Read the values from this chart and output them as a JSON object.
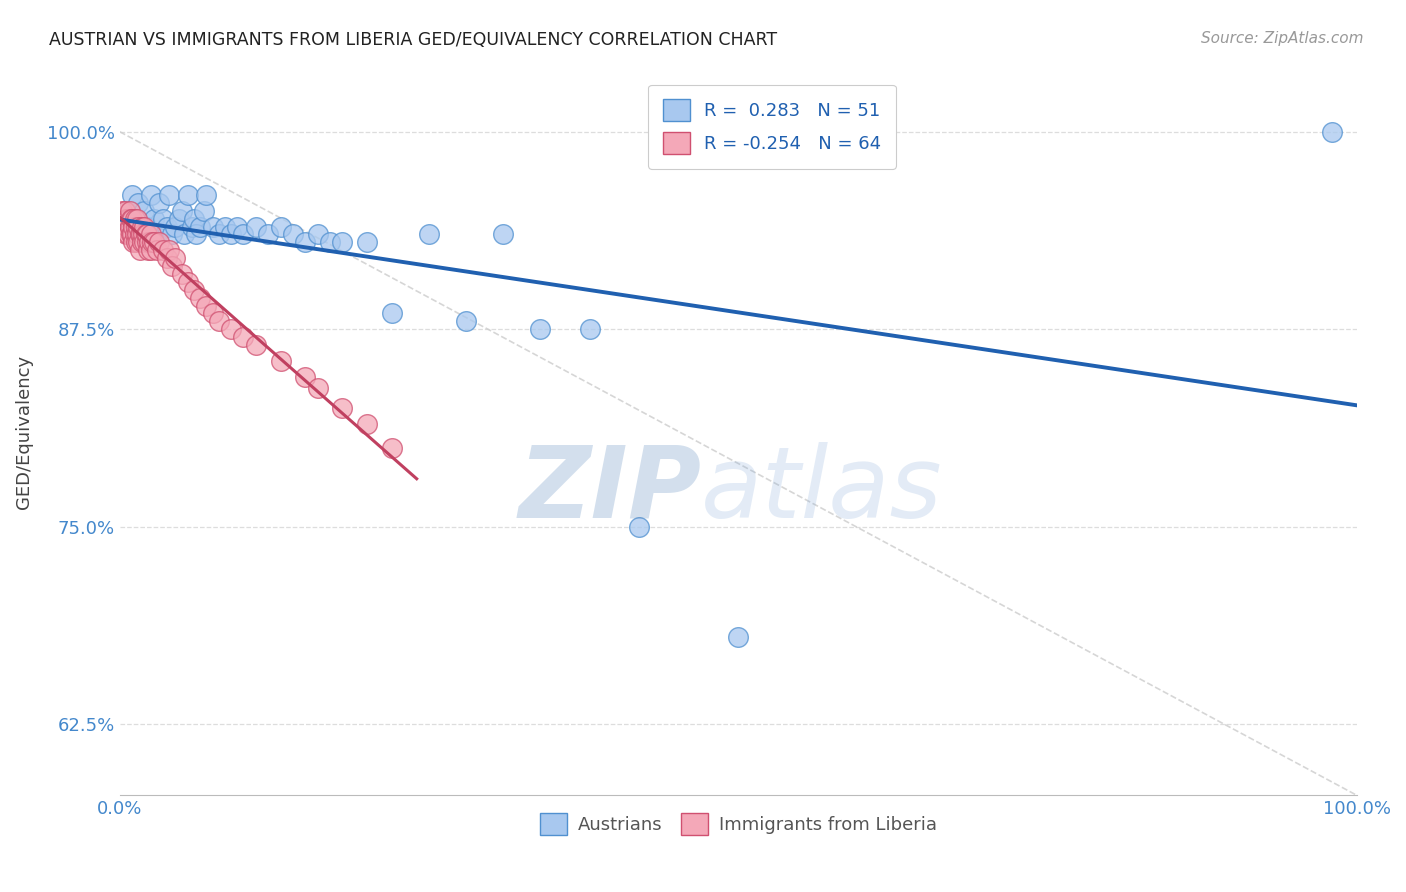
{
  "title": "AUSTRIAN VS IMMIGRANTS FROM LIBERIA GED/EQUIVALENCY CORRELATION CHART",
  "source": "Source: ZipAtlas.com",
  "ylabel": "GED/Equivalency",
  "xlim": [
    0.0,
    1.0
  ],
  "ylim": [
    0.58,
    1.04
  ],
  "yticks": [
    0.625,
    0.75,
    0.875,
    1.0
  ],
  "ytick_labels": [
    "62.5%",
    "75.0%",
    "87.5%",
    "100.0%"
  ],
  "xticks": [
    0.0,
    0.2,
    0.4,
    0.6,
    0.8,
    1.0
  ],
  "xtick_labels": [
    "0.0%",
    "",
    "",
    "",
    "",
    "100.0%"
  ],
  "blue_R": 0.283,
  "blue_N": 51,
  "pink_R": -0.254,
  "pink_N": 64,
  "legend1_label": "Austrians",
  "legend2_label": "Immigrants from Liberia",
  "blue_color": "#a8c8ef",
  "pink_color": "#f4a8b8",
  "blue_edge_color": "#5090d0",
  "pink_edge_color": "#d05070",
  "blue_line_color": "#2060b0",
  "pink_line_color": "#c04060",
  "watermark_zip": "ZIP",
  "watermark_atlas": "atlas",
  "blue_scatter_x": [
    0.005,
    0.008,
    0.01,
    0.012,
    0.015,
    0.018,
    0.02,
    0.022,
    0.025,
    0.028,
    0.03,
    0.032,
    0.035,
    0.038,
    0.04,
    0.042,
    0.045,
    0.048,
    0.05,
    0.052,
    0.055,
    0.058,
    0.06,
    0.062,
    0.065,
    0.068,
    0.07,
    0.075,
    0.08,
    0.085,
    0.09,
    0.095,
    0.1,
    0.11,
    0.12,
    0.13,
    0.14,
    0.15,
    0.16,
    0.17,
    0.18,
    0.2,
    0.22,
    0.25,
    0.28,
    0.31,
    0.34,
    0.38,
    0.42,
    0.5,
    0.98
  ],
  "blue_scatter_y": [
    0.95,
    0.94,
    0.96,
    0.945,
    0.955,
    0.935,
    0.95,
    0.94,
    0.96,
    0.945,
    0.935,
    0.955,
    0.945,
    0.94,
    0.96,
    0.935,
    0.94,
    0.945,
    0.95,
    0.935,
    0.96,
    0.94,
    0.945,
    0.935,
    0.94,
    0.95,
    0.96,
    0.94,
    0.935,
    0.94,
    0.935,
    0.94,
    0.935,
    0.94,
    0.935,
    0.94,
    0.935,
    0.93,
    0.935,
    0.93,
    0.93,
    0.93,
    0.885,
    0.935,
    0.88,
    0.935,
    0.875,
    0.875,
    0.75,
    0.68,
    1.0
  ],
  "pink_scatter_x": [
    0.002,
    0.003,
    0.004,
    0.005,
    0.005,
    0.006,
    0.007,
    0.007,
    0.008,
    0.008,
    0.009,
    0.009,
    0.01,
    0.01,
    0.011,
    0.011,
    0.012,
    0.012,
    0.013,
    0.013,
    0.014,
    0.014,
    0.015,
    0.015,
    0.016,
    0.016,
    0.017,
    0.018,
    0.018,
    0.019,
    0.02,
    0.02,
    0.021,
    0.022,
    0.022,
    0.023,
    0.024,
    0.025,
    0.025,
    0.026,
    0.028,
    0.03,
    0.032,
    0.035,
    0.038,
    0.04,
    0.042,
    0.045,
    0.05,
    0.055,
    0.06,
    0.065,
    0.07,
    0.075,
    0.08,
    0.09,
    0.1,
    0.11,
    0.13,
    0.15,
    0.16,
    0.18,
    0.2,
    0.22
  ],
  "pink_scatter_y": [
    0.95,
    0.94,
    0.95,
    0.935,
    0.945,
    0.94,
    0.945,
    0.935,
    0.95,
    0.94,
    0.945,
    0.935,
    0.945,
    0.935,
    0.94,
    0.93,
    0.945,
    0.935,
    0.94,
    0.93,
    0.945,
    0.935,
    0.94,
    0.93,
    0.935,
    0.925,
    0.935,
    0.94,
    0.93,
    0.935,
    0.94,
    0.93,
    0.935,
    0.93,
    0.935,
    0.925,
    0.93,
    0.935,
    0.925,
    0.93,
    0.93,
    0.925,
    0.93,
    0.925,
    0.92,
    0.925,
    0.915,
    0.92,
    0.91,
    0.905,
    0.9,
    0.895,
    0.89,
    0.885,
    0.88,
    0.875,
    0.87,
    0.865,
    0.855,
    0.845,
    0.838,
    0.825,
    0.815,
    0.8
  ],
  "background_color": "#ffffff",
  "grid_color": "#dddddd",
  "title_color": "#222222",
  "axis_label_color": "#444444",
  "tick_color": "#4488cc",
  "watermark_color": "#c8d8f0"
}
